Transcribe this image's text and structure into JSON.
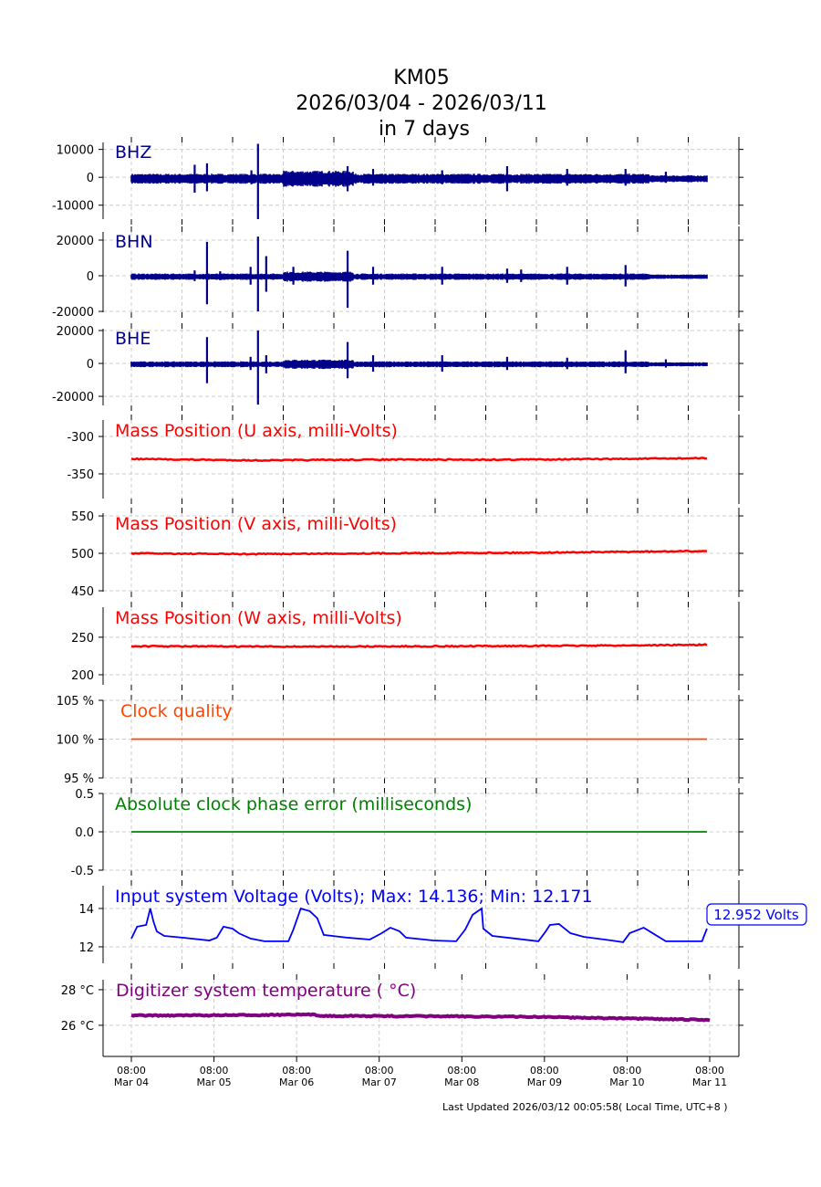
{
  "title": {
    "line1": "KM05",
    "line2": "2026/03/04 - 2026/03/11",
    "line3": "in 7 days"
  },
  "footer": "Last Updated 2026/03/12 00:05:58( Local Time, UTC+8 )",
  "x_tick_labels": [
    {
      "time": "08:00",
      "date": "Mar 04",
      "day": 0
    },
    {
      "time": "08:00",
      "date": "Mar 05",
      "day": 1
    },
    {
      "time": "08:00",
      "date": "Mar 06",
      "day": 2
    },
    {
      "time": "08:00",
      "date": "Mar 07",
      "day": 3
    },
    {
      "time": "08:00",
      "date": "Mar 08",
      "day": 4
    },
    {
      "time": "08:00",
      "date": "Mar 09",
      "day": 5
    },
    {
      "time": "08:00",
      "date": "Mar 10",
      "day": 6
    },
    {
      "time": "08:00",
      "date": "Mar 11",
      "day": 7
    }
  ],
  "colors": {
    "seismic": "#00008b",
    "mass": "#ff0000",
    "clock": "#ff4500",
    "phase": "#008000",
    "voltage": "#0000ff",
    "temp": "#800080"
  },
  "chart_data": [
    {
      "type": "line",
      "name": "BHZ",
      "label": "BHZ",
      "ylim": [
        -15000,
        12500
      ],
      "yticks": [
        {
          "v": 10000,
          "t": "10000"
        },
        {
          "v": 0,
          "t": "0"
        },
        {
          "v": -10000,
          "t": "-10000"
        }
      ],
      "noise": 1500,
      "xlim_days": [
        0,
        7
      ],
      "spikes": [
        [
          0.77,
          4500,
          -5500
        ],
        [
          0.92,
          5000,
          -5000
        ],
        [
          1.46,
          2500,
          -2500
        ],
        [
          1.54,
          12000,
          -15000
        ],
        [
          2.63,
          4000,
          -5000
        ],
        [
          2.94,
          3000,
          -3000
        ],
        [
          3.78,
          2500,
          -2500
        ],
        [
          4.57,
          4000,
          -5000
        ],
        [
          5.3,
          3000,
          -3000
        ],
        [
          6.01,
          3000,
          -3000
        ],
        [
          6.5,
          2000,
          -2000
        ]
      ]
    },
    {
      "type": "line",
      "name": "BHN",
      "label": "BHN",
      "ylim": [
        -20500,
        24600
      ],
      "yticks": [
        {
          "v": 20000,
          "t": "20000"
        },
        {
          "v": 0,
          "t": "0"
        },
        {
          "v": -20000,
          "t": "-20000"
        }
      ],
      "noise": 1500,
      "xlim_days": [
        0,
        7
      ],
      "spikes": [
        [
          0.77,
          3000,
          -3000
        ],
        [
          0.92,
          19000,
          -16000
        ],
        [
          1.08,
          2500,
          -2500
        ],
        [
          1.45,
          5000,
          -5000
        ],
        [
          1.54,
          22000,
          -20000
        ],
        [
          1.64,
          11000,
          -9000
        ],
        [
          1.97,
          5000,
          -5000
        ],
        [
          2.63,
          14000,
          -18000
        ],
        [
          2.94,
          5000,
          -5000
        ],
        [
          3.78,
          5000,
          -5000
        ],
        [
          4.57,
          4000,
          -4000
        ],
        [
          4.74,
          3500,
          -3500
        ],
        [
          5.3,
          5000,
          -5000
        ],
        [
          6.01,
          6000,
          -6000
        ]
      ]
    },
    {
      "type": "line",
      "name": "BHE",
      "label": "BHE",
      "ylim": [
        -25500,
        21100
      ],
      "yticks": [
        {
          "v": 20000,
          "t": "20000"
        },
        {
          "v": 0,
          "t": "0"
        },
        {
          "v": -20000,
          "t": "-20000"
        }
      ],
      "noise": 1500,
      "xlim_days": [
        0,
        7
      ],
      "spikes": [
        [
          0.92,
          16000,
          -12000
        ],
        [
          1.45,
          4000,
          -4000
        ],
        [
          1.54,
          20000,
          -25000
        ],
        [
          1.64,
          5000,
          -6000
        ],
        [
          2.63,
          13000,
          -9000
        ],
        [
          2.94,
          5000,
          -5000
        ],
        [
          3.78,
          5000,
          -5000
        ],
        [
          4.57,
          4000,
          -4000
        ],
        [
          5.3,
          3500,
          -3500
        ],
        [
          6.01,
          8000,
          -6000
        ],
        [
          6.5,
          2500,
          -2500
        ]
      ]
    },
    {
      "type": "line",
      "name": "mass-u",
      "label": "Mass Position (U axis, milli-Volts)",
      "ylim": [
        -383,
        -278
      ],
      "yticks": [
        {
          "v": -300,
          "t": "-300"
        },
        {
          "v": -350,
          "t": "-350"
        }
      ],
      "points": [
        [
          0,
          -330
        ],
        [
          1.5,
          -332
        ],
        [
          3,
          -331
        ],
        [
          4.5,
          -331
        ],
        [
          6,
          -330
        ],
        [
          7,
          -329
        ]
      ]
    },
    {
      "type": "line",
      "name": "mass-v",
      "label": "Mass Position (V axis, milli-Volts)",
      "ylim": [
        448.8,
        553.7
      ],
      "yticks": [
        {
          "v": 550,
          "t": "550"
        },
        {
          "v": 500,
          "t": "500"
        },
        {
          "v": 450,
          "t": "450"
        }
      ],
      "points": [
        [
          0,
          500
        ],
        [
          1.4,
          499
        ],
        [
          3,
          500
        ],
        [
          5,
          501
        ],
        [
          7,
          503
        ]
      ]
    },
    {
      "type": "line",
      "name": "mass-w",
      "label": "Mass Position (W axis, milli-Volts)",
      "ylim": [
        186.6,
        290
      ],
      "yticks": [
        {
          "v": 250,
          "t": "250"
        },
        {
          "v": 200,
          "t": "200"
        }
      ],
      "points": [
        [
          0,
          238
        ],
        [
          2,
          237.5
        ],
        [
          4,
          238
        ],
        [
          6,
          239
        ],
        [
          7,
          240
        ]
      ]
    },
    {
      "type": "line",
      "name": "clock-quality",
      "label": "Clock quality",
      "ylim": [
        95,
        105
      ],
      "yticks": [
        {
          "v": 105,
          "t": "105 %"
        },
        {
          "v": 100,
          "t": "100 %"
        },
        {
          "v": 95,
          "t": "95 %"
        }
      ],
      "points": [
        [
          0,
          100
        ],
        [
          7,
          100
        ]
      ]
    },
    {
      "type": "line",
      "name": "clock-phase-error",
      "label": "Absolute clock phase error (milliseconds)",
      "ylim": [
        -0.5,
        0.5
      ],
      "yticks": [
        {
          "v": 0.5,
          "t": "0.5"
        },
        {
          "v": 0,
          "t": "0.0"
        },
        {
          "v": -0.5,
          "t": "-0.5"
        }
      ],
      "points": [
        [
          0,
          0
        ],
        [
          7,
          0
        ]
      ]
    },
    {
      "type": "line",
      "name": "voltage",
      "label": "Input system Voltage (Volts);    Max: 14.136; Min: 12.171",
      "annotation": "12.952 Volts",
      "ylim": [
        11.14,
        15.19
      ],
      "yticks": [
        {
          "v": 14,
          "t": "14"
        },
        {
          "v": 12,
          "t": "12"
        }
      ],
      "points": [
        [
          0,
          12.43
        ],
        [
          0.07,
          13.05
        ],
        [
          0.18,
          13.14
        ],
        [
          0.23,
          14.0
        ],
        [
          0.27,
          13.3
        ],
        [
          0.31,
          12.8
        ],
        [
          0.4,
          12.57
        ],
        [
          0.62,
          12.48
        ],
        [
          0.95,
          12.33
        ],
        [
          1.04,
          12.48
        ],
        [
          1.12,
          13.05
        ],
        [
          1.23,
          12.95
        ],
        [
          1.31,
          12.7
        ],
        [
          1.45,
          12.43
        ],
        [
          1.62,
          12.29
        ],
        [
          1.91,
          12.29
        ],
        [
          1.97,
          12.9
        ],
        [
          2.06,
          14.0
        ],
        [
          2.17,
          13.86
        ],
        [
          2.26,
          13.5
        ],
        [
          2.34,
          12.62
        ],
        [
          2.62,
          12.48
        ],
        [
          2.9,
          12.38
        ],
        [
          3.04,
          12.7
        ],
        [
          3.15,
          13.0
        ],
        [
          3.26,
          12.81
        ],
        [
          3.34,
          12.48
        ],
        [
          3.67,
          12.33
        ],
        [
          3.95,
          12.29
        ],
        [
          4.06,
          12.9
        ],
        [
          4.15,
          13.67
        ],
        [
          4.26,
          14.0
        ],
        [
          4.28,
          12.95
        ],
        [
          4.39,
          12.57
        ],
        [
          4.67,
          12.43
        ],
        [
          4.95,
          12.29
        ],
        [
          5.04,
          12.81
        ],
        [
          5.09,
          13.14
        ],
        [
          5.2,
          13.19
        ],
        [
          5.34,
          12.71
        ],
        [
          5.5,
          12.52
        ],
        [
          5.84,
          12.33
        ],
        [
          5.98,
          12.24
        ],
        [
          6.06,
          12.71
        ],
        [
          6.23,
          13.0
        ],
        [
          6.34,
          12.71
        ],
        [
          6.5,
          12.29
        ],
        [
          6.94,
          12.29
        ],
        [
          7.0,
          12.95
        ]
      ]
    },
    {
      "type": "line",
      "name": "temperature",
      "label": "Digitizer system temperature ( °C)",
      "ylim": [
        24.25,
        28.56
      ],
      "yticks": [
        {
          "v": 28,
          "t": "28 °C"
        },
        {
          "v": 26,
          "t": "26 °C"
        }
      ],
      "points": [
        [
          0,
          26.55
        ],
        [
          1,
          26.56
        ],
        [
          2.2,
          26.6
        ],
        [
          2.3,
          26.53
        ],
        [
          4,
          26.5
        ],
        [
          5,
          26.47
        ],
        [
          6,
          26.38
        ],
        [
          7,
          26.3
        ]
      ]
    }
  ]
}
